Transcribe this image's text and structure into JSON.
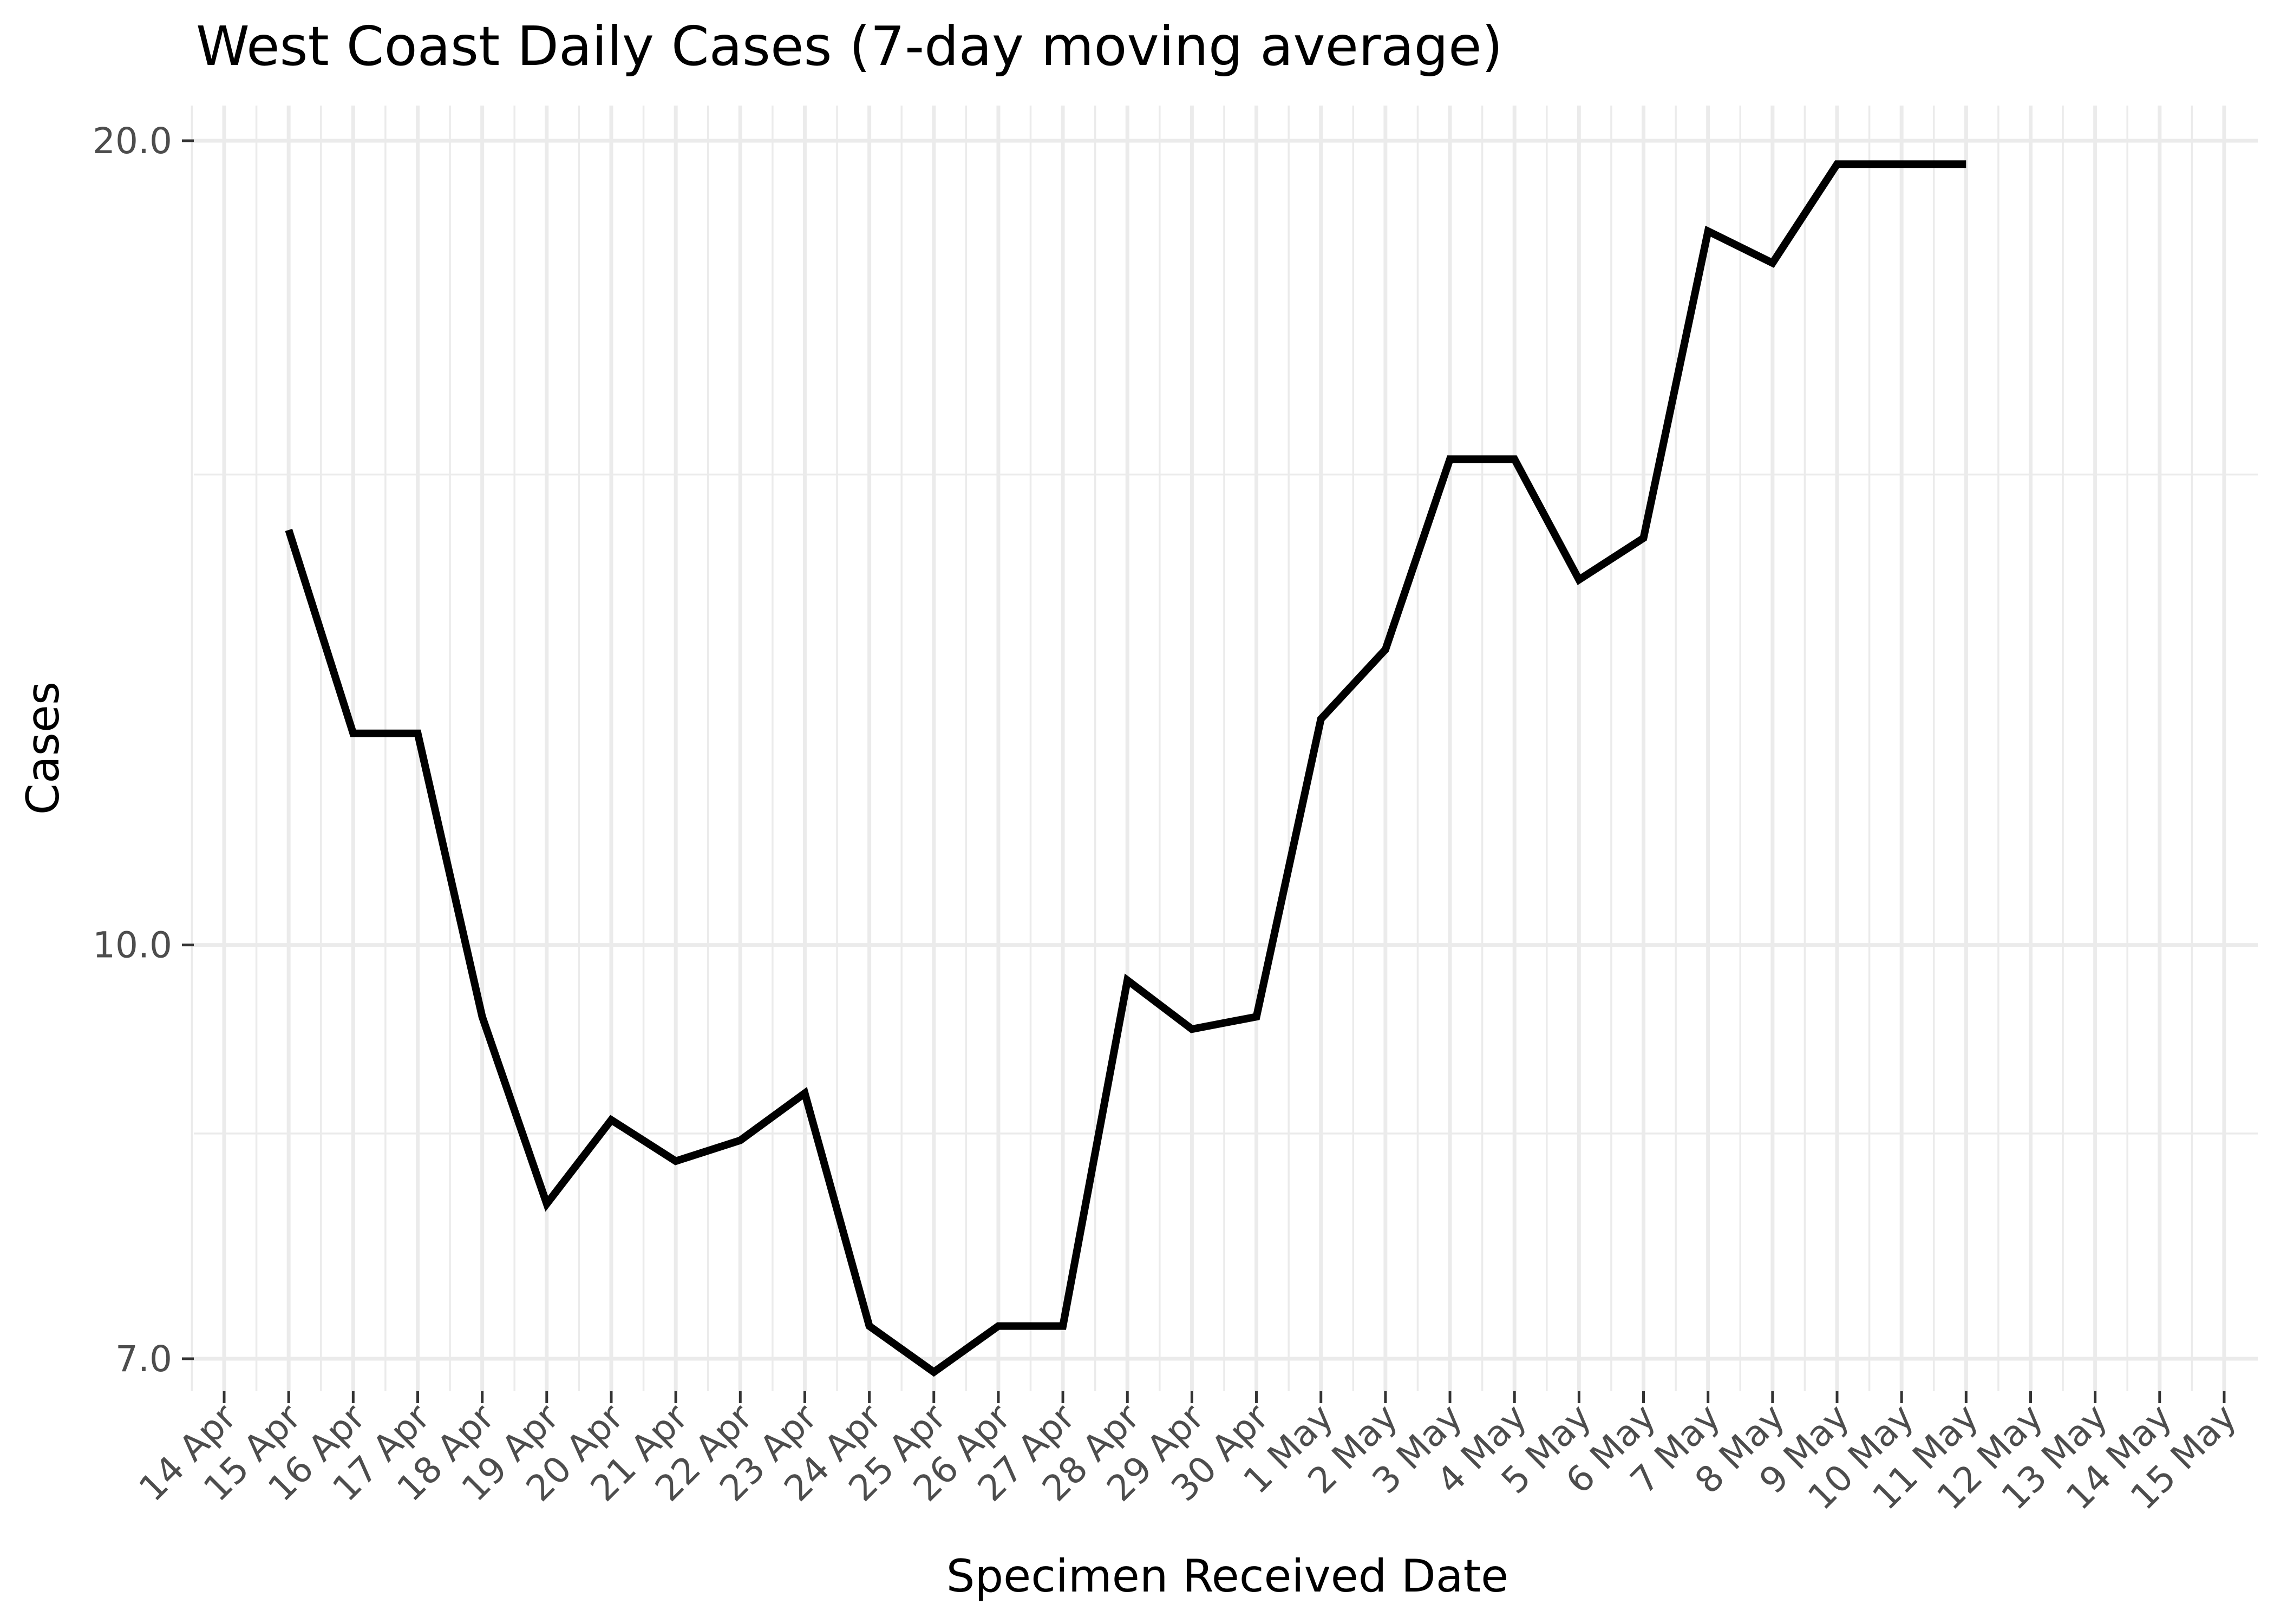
{
  "chart_data": {
    "type": "line",
    "title": "West Coast Daily Cases (7-day moving average)",
    "xlabel": "Specimen Received Date",
    "ylabel": "Cases",
    "y_scale": "log",
    "ylim": [
      6.7,
      21.2
    ],
    "y_ticks": [
      {
        "value": 7.0,
        "label": "7.0"
      },
      {
        "value": 10.0,
        "label": "10.0"
      },
      {
        "value": 20.0,
        "label": "20.0"
      }
    ],
    "y_minor_ticks": [
      8.5,
      15.0
    ],
    "x_categories": [
      "14 Apr",
      "15 Apr",
      "16 Apr",
      "17 Apr",
      "18 Apr",
      "19 Apr",
      "20 Apr",
      "21 Apr",
      "22 Apr",
      "23 Apr",
      "24 Apr",
      "25 Apr",
      "26 Apr",
      "27 Apr",
      "28 Apr",
      "29 Apr",
      "30 Apr",
      "1 May",
      "2 May",
      "3 May",
      "4 May",
      "5 May",
      "6 May",
      "7 May",
      "8 May",
      "9 May",
      "10 May",
      "11 May",
      "12 May",
      "13 May",
      "14 May",
      "15 May"
    ],
    "grid": true,
    "legend": "none",
    "series": [
      {
        "x": [
          "15 Apr",
          "16 Apr",
          "17 Apr",
          "18 Apr",
          "19 Apr",
          "20 Apr",
          "21 Apr",
          "22 Apr",
          "23 Apr",
          "24 Apr",
          "25 Apr",
          "26 Apr",
          "27 Apr",
          "28 Apr",
          "29 Apr",
          "30 Apr",
          "1 May",
          "2 May",
          "3 May",
          "4 May",
          "5 May",
          "6 May",
          "7 May",
          "8 May",
          "9 May",
          "10 May",
          "11 May"
        ],
        "values": [
          14.3,
          12.0,
          12.0,
          9.4,
          8.0,
          8.6,
          8.3,
          8.45,
          8.8,
          7.2,
          6.92,
          7.2,
          7.2,
          9.7,
          9.3,
          9.4,
          12.15,
          12.9,
          15.2,
          15.2,
          13.7,
          14.2,
          18.5,
          18.0,
          19.6,
          19.6,
          19.6
        ]
      }
    ],
    "colors": {
      "line": "#000000",
      "grid": "#ebebeb",
      "tick_text": "#4d4d4d"
    }
  }
}
